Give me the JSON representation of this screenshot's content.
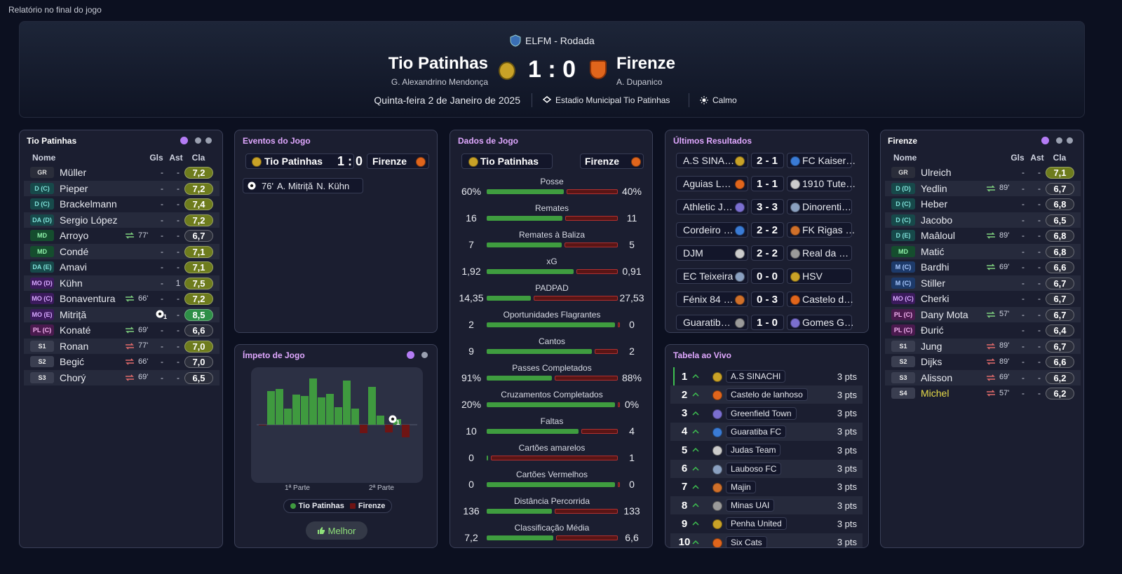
{
  "window_title": "Relatório no final do jogo",
  "header": {
    "competition": "ELFM - Rodada",
    "home_team": "Tio Patinhas",
    "home_manager": "G. Alexandrino Mendonça",
    "score": "1 : 0",
    "away_team": "Firenze",
    "away_manager": "A. Dupanico",
    "date": "Quinta-feira 2 de Janeiro de 2025",
    "stadium": "Estadio Municipal Tio Patinhas",
    "weather": "Calmo"
  },
  "home_lineup": {
    "title": "Tio Patinhas",
    "columns": [
      "Nome",
      "Gls",
      "Ast",
      "Cla"
    ],
    "players": [
      {
        "pos": "GR",
        "name": "Müller",
        "gls": "-",
        "ast": "-",
        "rating": "7,2",
        "color": "#6e7c1d"
      },
      {
        "pos": "D (C)",
        "name": "Pieper",
        "gls": "-",
        "ast": "-",
        "rating": "7,2",
        "color": "#6e7c1d"
      },
      {
        "pos": "D (C)",
        "name": "Brackelmann",
        "gls": "-",
        "ast": "-",
        "rating": "7,4",
        "color": "#6e7c1d"
      },
      {
        "pos": "DA (D)",
        "name": "Sergio López",
        "gls": "-",
        "ast": "-",
        "rating": "7,2",
        "color": "#6e7c1d"
      },
      {
        "pos": "MD",
        "name": "Arroyo",
        "sub": "77'",
        "gls": "-",
        "ast": "-",
        "rating": "6,7",
        "color": "#2b2e3b"
      },
      {
        "pos": "MD",
        "name": "Condé",
        "gls": "-",
        "ast": "-",
        "rating": "7,1",
        "color": "#6e7c1d"
      },
      {
        "pos": "DA (E)",
        "name": "Amavi",
        "gls": "-",
        "ast": "-",
        "rating": "7,1",
        "color": "#6e7c1d"
      },
      {
        "pos": "MO (D)",
        "name": "Kühn",
        "gls": "-",
        "ast": "1",
        "rating": "7,5",
        "color": "#6e7c1d"
      },
      {
        "pos": "MO (C)",
        "name": "Bonaventura",
        "sub": "66'",
        "gls": "-",
        "ast": "-",
        "rating": "7,2",
        "color": "#6e7c1d"
      },
      {
        "pos": "MO (E)",
        "name": "Mitriță",
        "gls": "1",
        "ast": "-",
        "rating": "8,5",
        "color": "#2e8f47"
      },
      {
        "pos": "PL (C)",
        "name": "Konaté",
        "sub": "69'",
        "gls": "-",
        "ast": "-",
        "rating": "6,6",
        "color": "#2b2e3b"
      },
      {
        "pos": "S1",
        "name": "Ronan",
        "sub": "77'",
        "gls": "-",
        "ast": "-",
        "rating": "7,0",
        "color": "#6e7c1d"
      },
      {
        "pos": "S2",
        "name": "Begić",
        "sub": "66'",
        "gls": "-",
        "ast": "-",
        "rating": "7,0",
        "color": "#2b2e3b"
      },
      {
        "pos": "S3",
        "name": "Chorý",
        "sub": "69'",
        "gls": "-",
        "ast": "-",
        "rating": "6,5",
        "color": "#2b2e3b"
      }
    ]
  },
  "events": {
    "title": "Eventos do Jogo",
    "home_team": "Tio Patinhas",
    "score": "1 : 0",
    "away_team": "Firenze",
    "items": [
      {
        "minute": "76'",
        "scorer": "A. Mitriță",
        "assist": "N. Kühn"
      }
    ]
  },
  "momentum": {
    "title": "Ímpeto de Jogo",
    "values": [
      -1,
      48,
      51,
      23,
      43,
      41,
      66,
      39,
      44,
      25,
      63,
      23,
      -12,
      54,
      13,
      -11,
      8,
      -18
    ],
    "goal_count": "1",
    "halves": [
      "1ª Parte",
      "2ª Parte"
    ],
    "legend": [
      {
        "name": "Tio Patinhas",
        "color": "#3f9a3f"
      },
      {
        "name": "Firenze",
        "color": "#6e1414"
      }
    ],
    "button": "Melhor"
  },
  "stats": {
    "title": "Dados de Jogo",
    "home_team": "Tio Patinhas",
    "away_team": "Firenze",
    "home_color": "#3f9d3f",
    "away_color": "#5a1515",
    "items": [
      {
        "name": "Posse",
        "home": 60,
        "away": 40,
        "home_label": "60%",
        "away_label": "40%"
      },
      {
        "name": "Remates",
        "home": 16,
        "away": 11
      },
      {
        "name": "Remates à Baliza",
        "home": 7,
        "away": 5
      },
      {
        "name": "xG",
        "home": 1.92,
        "away": 0.91,
        "home_label": "1,92",
        "away_label": "0,91"
      },
      {
        "name": "PADPAD",
        "home": 14.35,
        "away": 27.53,
        "home_label": "14,35",
        "away_label": "27,53"
      },
      {
        "name": "Oportunidades Flagrantes",
        "home": 2,
        "away": 0
      },
      {
        "name": "Cantos",
        "home": 9,
        "away": 2
      },
      {
        "name": "Passes Completados",
        "home": 91,
        "away": 88,
        "home_label": "91%",
        "away_label": "88%"
      },
      {
        "name": "Cruzamentos Completados",
        "home": 20,
        "away": 0,
        "home_label": "20%",
        "away_label": "0%"
      },
      {
        "name": "Faltas",
        "home": 10,
        "away": 4
      },
      {
        "name": "Cartões amarelos",
        "home": 0,
        "away": 1
      },
      {
        "name": "Cartões Vermelhos",
        "home": 0,
        "away": 0
      },
      {
        "name": "Distância Percorrida",
        "home": 136,
        "away": 133
      },
      {
        "name": "Classificação Média",
        "home": 7.2,
        "away": 6.6,
        "home_label": "7,2",
        "away_label": "6,6"
      }
    ]
  },
  "recent_results": {
    "title": "Últimos Resultados",
    "rows": [
      {
        "home": "A.S SINA…",
        "score": "2 - 1",
        "away": "FC Kaiser…"
      },
      {
        "home": "Aguias L…",
        "score": "1 - 1",
        "away": "1910 Tute…"
      },
      {
        "home": "Athletic J…",
        "score": "3 - 3",
        "away": "Dinorenti…"
      },
      {
        "home": "Cordeiro …",
        "score": "2 - 2",
        "away": "FK Rigas …"
      },
      {
        "home": "DJM",
        "score": "2 - 2",
        "away": "Real da …"
      },
      {
        "home": "EC Teixeira",
        "score": "0 - 0",
        "away": "HSV"
      },
      {
        "home": "Fénix 84 …",
        "score": "0 - 3",
        "away": "Castelo d…"
      },
      {
        "home": "Guaratib…",
        "score": "1 - 0",
        "away": "Gomes G…"
      }
    ]
  },
  "live_table": {
    "title": "Tabela ao Vivo",
    "rows": [
      {
        "pos": 1,
        "team": "A.S SINACHI",
        "pts": "3 pts"
      },
      {
        "pos": 2,
        "team": "Castelo de lanhoso",
        "pts": "3 pts"
      },
      {
        "pos": 3,
        "team": "Greenfield Town",
        "pts": "3 pts"
      },
      {
        "pos": 4,
        "team": "Guaratiba FC",
        "pts": "3 pts"
      },
      {
        "pos": 5,
        "team": "Judas Team",
        "pts": "3 pts"
      },
      {
        "pos": 6,
        "team": "Lauboso FC",
        "pts": "3 pts"
      },
      {
        "pos": 7,
        "team": "Majin",
        "pts": "3 pts"
      },
      {
        "pos": 8,
        "team": "Minas UAI",
        "pts": "3 pts"
      },
      {
        "pos": 9,
        "team": "Penha United",
        "pts": "3 pts"
      },
      {
        "pos": 10,
        "team": "Six Cats",
        "pts": "3 pts"
      }
    ]
  },
  "away_lineup": {
    "title": "Firenze",
    "columns": [
      "Nome",
      "Gls",
      "Ast",
      "Cla"
    ],
    "players": [
      {
        "pos": "GR",
        "name": "Ulreich",
        "gls": "-",
        "ast": "-",
        "rating": "7,1",
        "color": "#6e7c1d"
      },
      {
        "pos": "D (D)",
        "name": "Yedlin",
        "sub": "89'",
        "gls": "-",
        "ast": "-",
        "rating": "6,7",
        "color": "#2b2e3b"
      },
      {
        "pos": "D (C)",
        "name": "Heber",
        "gls": "-",
        "ast": "-",
        "rating": "6,8",
        "color": "#2b2e3b"
      },
      {
        "pos": "D (C)",
        "name": "Jacobo",
        "gls": "-",
        "ast": "-",
        "rating": "6,5",
        "color": "#2b2e3b"
      },
      {
        "pos": "D (E)",
        "name": "Maâloul",
        "sub": "89'",
        "gls": "-",
        "ast": "-",
        "rating": "6,8",
        "color": "#2b2e3b"
      },
      {
        "pos": "MD",
        "name": "Matić",
        "gls": "-",
        "ast": "-",
        "rating": "6,8",
        "color": "#2b2e3b"
      },
      {
        "pos": "M (C)",
        "name": "Bardhi",
        "sub": "69'",
        "gls": "-",
        "ast": "-",
        "rating": "6,6",
        "color": "#2b2e3b"
      },
      {
        "pos": "M (C)",
        "name": "Stiller",
        "gls": "-",
        "ast": "-",
        "rating": "6,7",
        "color": "#2b2e3b"
      },
      {
        "pos": "MO (C)",
        "name": "Cherki",
        "gls": "-",
        "ast": "-",
        "rating": "6,7",
        "color": "#2b2e3b"
      },
      {
        "pos": "PL (C)",
        "name": "Dany Mota",
        "sub": "57'",
        "gls": "-",
        "ast": "-",
        "rating": "6,7",
        "color": "#2b2e3b"
      },
      {
        "pos": "PL (C)",
        "name": "Đurić",
        "gls": "-",
        "ast": "-",
        "rating": "6,4",
        "color": "#2b2e3b"
      },
      {
        "pos": "S1",
        "name": "Jung",
        "sub": "89'",
        "gls": "-",
        "ast": "-",
        "rating": "6,7",
        "color": "#2b2e3b"
      },
      {
        "pos": "S2",
        "name": "Dijks",
        "sub": "89'",
        "gls": "-",
        "ast": "-",
        "rating": "6,6",
        "color": "#2b2e3b"
      },
      {
        "pos": "S3",
        "name": "Alisson",
        "sub": "69'",
        "gls": "-",
        "ast": "-",
        "rating": "6,2",
        "color": "#2b2e3b"
      },
      {
        "pos": "S4",
        "name": "Michel",
        "name_color": "#e8dc4a",
        "sub": "57'",
        "gls": "-",
        "ast": "-",
        "rating": "6,2",
        "color": "#2b2e3b"
      }
    ]
  }
}
